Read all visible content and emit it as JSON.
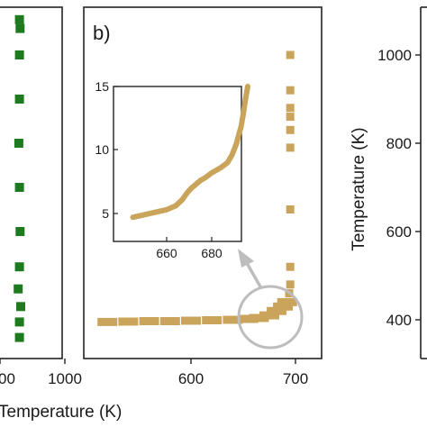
{
  "colors": {
    "green": "#1e7a1e",
    "gold": "#c9a45a",
    "gray": "#bdbdbd",
    "frame": "#222222"
  },
  "chart_data": [
    {
      "type": "scatter",
      "panel": "a",
      "xlabel": "Temperature (K)",
      "x_tick_labels": [
        "00",
        "1000"
      ],
      "series": [
        {
          "color": "#1e7a1e",
          "points": [
            [
              930,
              360
            ],
            [
              930,
              395
            ],
            [
              932,
              430
            ],
            [
              928,
              470
            ],
            [
              930,
              520
            ],
            [
              931,
              600
            ],
            [
              930,
              700
            ],
            [
              929,
              800
            ],
            [
              930,
              900
            ],
            [
              930,
              1000
            ],
            [
              931,
              1060
            ],
            [
              930,
              1080
            ]
          ]
        }
      ]
    },
    {
      "type": "scatter",
      "panel": "b",
      "panel_label": "b)",
      "xlabel": "",
      "x_tick_labels": [
        "600",
        "700"
      ],
      "xlim": [
        505,
        715
      ],
      "ylim": [
        300,
        1080
      ],
      "series": [
        {
          "color": "#c9a45a",
          "points": [
            [
              520,
              395
            ],
            [
              540,
              396
            ],
            [
              560,
              397
            ],
            [
              580,
              397
            ],
            [
              600,
              398
            ],
            [
              620,
              399
            ],
            [
              640,
              400
            ],
            [
              655,
              402
            ],
            [
              665,
              404
            ],
            [
              675,
              410
            ],
            [
              682,
              420
            ],
            [
              688,
              430
            ],
            [
              692,
              440
            ],
            [
              694,
              460
            ],
            [
              695,
              480
            ],
            [
              695,
              520
            ],
            [
              695,
              650
            ],
            [
              695,
              790
            ],
            [
              695,
              830
            ],
            [
              695,
              860
            ],
            [
              695,
              880
            ],
            [
              695,
              920
            ],
            [
              695,
              1000
            ]
          ]
        }
      ],
      "inset": {
        "x_tick_labels": [
          "660",
          "680"
        ],
        "y_tick_labels": [
          "5",
          "10",
          "15"
        ],
        "xlim": [
          645,
          697
        ],
        "ylim": [
          4,
          15
        ],
        "series": [
          {
            "color": "#c9a45a",
            "points": [
              [
                645,
                4.7
              ],
              [
                650,
                4.9
              ],
              [
                655,
                5.1
              ],
              [
                660,
                5.3
              ],
              [
                664,
                5.6
              ],
              [
                667,
                6.1
              ],
              [
                669,
                6.6
              ],
              [
                671,
                7.0
              ],
              [
                673,
                7.3
              ],
              [
                675,
                7.6
              ],
              [
                677,
                7.8
              ],
              [
                680,
                8.2
              ],
              [
                684,
                8.6
              ],
              [
                687,
                9.0
              ],
              [
                689,
                9.6
              ],
              [
                691,
                10.5
              ],
              [
                692,
                11.2
              ],
              [
                693,
                11.8
              ],
              [
                694,
                12.8
              ],
              [
                695,
                14.0
              ],
              [
                696,
                15.0
              ]
            ]
          }
        ]
      }
    },
    {
      "type": "scatter",
      "panel": "c",
      "ylabel": "Temperature (K)",
      "y_tick_labels": [
        "400",
        "600",
        "800",
        "1000"
      ],
      "ylim": [
        300,
        1080
      ],
      "series": []
    }
  ]
}
